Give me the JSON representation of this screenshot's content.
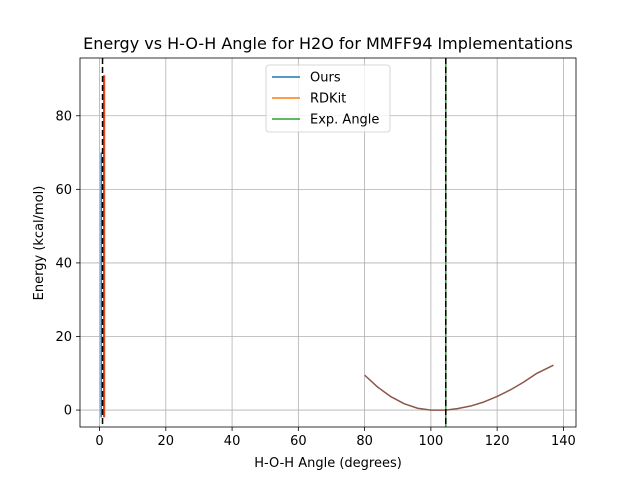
{
  "chart_data": {
    "type": "line",
    "title": "Energy vs H-O-H Angle for H2O for MMFF94 Implementations",
    "xlabel": "H-O-H Angle (degrees)",
    "ylabel": "Energy (kcal/mol)",
    "xlim": [
      -5.9,
      143.8
    ],
    "ylim": [
      -4.6,
      95.7
    ],
    "xticks": [
      0,
      20,
      40,
      60,
      80,
      100,
      120,
      140
    ],
    "yticks": [
      0,
      20,
      40,
      60,
      80
    ],
    "grid": true,
    "legend_position": "top-center",
    "series": [
      {
        "name": "Ours",
        "color": "#1f77b4",
        "x": [
          0.5,
          0.5,
          0.5
        ],
        "y": [
          -2,
          30,
          70
        ]
      },
      {
        "name": "RDKit",
        "color": "#ff7f0e",
        "x": [
          1.5,
          1.5
        ],
        "y": [
          -2,
          91
        ]
      },
      {
        "name": "Exp. Angle",
        "color": "#2ca02c",
        "x": [
          104.5,
          104.5
        ],
        "y": [
          -4.6,
          95.7
        ]
      }
    ],
    "unlabeled_series": [
      {
        "color": "#d62728",
        "x": [
          1.3,
          1.3
        ],
        "y": [
          -2,
          91
        ]
      },
      {
        "color": "#8c564b",
        "x": [
          80,
          84,
          88,
          92,
          96,
          100,
          104,
          104.5,
          108,
          112,
          116,
          120,
          124,
          128,
          132,
          137
        ],
        "y": [
          9.5,
          6.2,
          3.6,
          1.7,
          0.5,
          0.0,
          0.0,
          0.0,
          0.4,
          1.1,
          2.2,
          3.7,
          5.5,
          7.6,
          10.0,
          12.2
        ]
      }
    ],
    "reference_lines": [
      {
        "x": 0.9,
        "color": "#000000",
        "style": "dashed"
      },
      {
        "x": 104.5,
        "color": "#000000",
        "style": "dashed"
      }
    ]
  }
}
